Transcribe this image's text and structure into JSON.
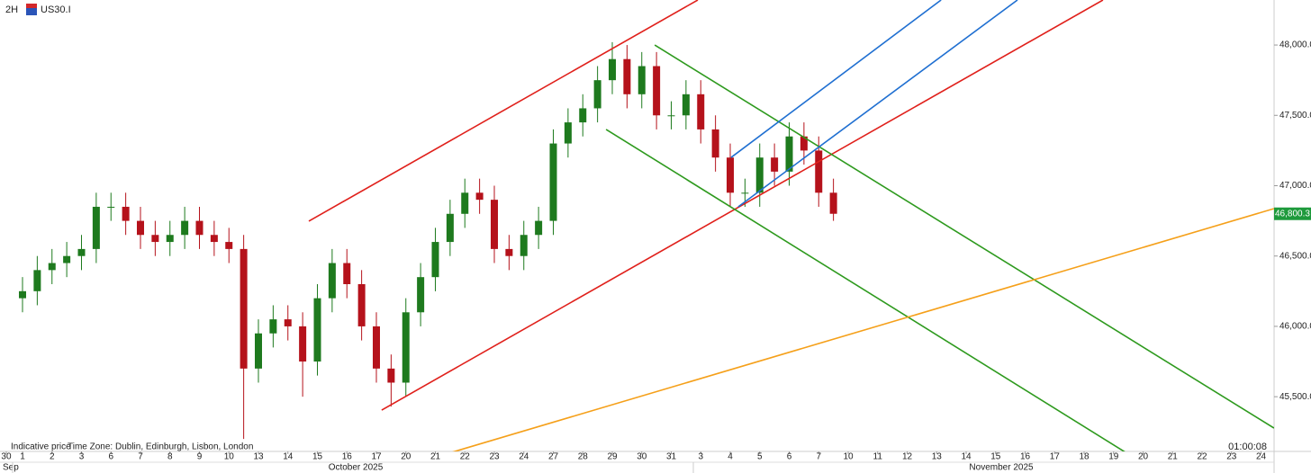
{
  "chart_data": {
    "type": "candlestick",
    "timeframe": "2H",
    "symbol": "US30.I",
    "footer_left": "Indicative price",
    "timezone": "Time Zone: Dublin, Edinburgh, Lisbon, London",
    "countdown": "01:00:08",
    "months": [
      "Sep",
      "October 2025",
      "November 2025"
    ],
    "ylim": [
      45111,
      48320
    ],
    "yticks": [
      {
        "value": 48000,
        "label": "48,000.0"
      },
      {
        "value": 47500,
        "label": "47,500.0"
      },
      {
        "value": 47000,
        "label": "47,000.0"
      },
      {
        "value": 46500,
        "label": "46,500.0"
      },
      {
        "value": 46000,
        "label": "46,000.0"
      },
      {
        "value": 45500,
        "label": "45,500.0"
      }
    ],
    "xlim": [
      -0.76,
      42.45
    ],
    "xticks": [
      {
        "value": -0.55,
        "label": "30"
      },
      {
        "value": 0,
        "label": "1"
      },
      {
        "value": 1,
        "label": "2"
      },
      {
        "value": 2,
        "label": "3"
      },
      {
        "value": 3,
        "label": "6"
      },
      {
        "value": 4,
        "label": "7"
      },
      {
        "value": 5,
        "label": "8"
      },
      {
        "value": 6,
        "label": "9"
      },
      {
        "value": 7,
        "label": "10"
      },
      {
        "value": 8,
        "label": "13"
      },
      {
        "value": 9,
        "label": "14"
      },
      {
        "value": 10,
        "label": "15"
      },
      {
        "value": 11,
        "label": "16"
      },
      {
        "value": 12,
        "label": "17"
      },
      {
        "value": 13,
        "label": "20"
      },
      {
        "value": 14,
        "label": "21"
      },
      {
        "value": 15,
        "label": "22"
      },
      {
        "value": 16,
        "label": "23"
      },
      {
        "value": 17,
        "label": "24"
      },
      {
        "value": 18,
        "label": "27"
      },
      {
        "value": 19,
        "label": "28"
      },
      {
        "value": 20,
        "label": "29"
      },
      {
        "value": 21,
        "label": "30"
      },
      {
        "value": 22,
        "label": "31"
      },
      {
        "value": 23,
        "label": "3"
      },
      {
        "value": 24,
        "label": "4"
      },
      {
        "value": 25,
        "label": "5"
      },
      {
        "value": 26,
        "label": "6"
      },
      {
        "value": 27,
        "label": "7"
      },
      {
        "value": 28,
        "label": "10"
      },
      {
        "value": 29,
        "label": "11"
      },
      {
        "value": 30,
        "label": "12"
      },
      {
        "value": 31,
        "label": "13"
      },
      {
        "value": 32,
        "label": "14"
      },
      {
        "value": 33,
        "label": "15"
      },
      {
        "value": 34,
        "label": "16"
      },
      {
        "value": 35,
        "label": "17"
      },
      {
        "value": 36,
        "label": "18"
      },
      {
        "value": 37,
        "label": "19"
      },
      {
        "value": 38,
        "label": "20"
      },
      {
        "value": 39,
        "label": "21"
      },
      {
        "value": 40,
        "label": "22"
      },
      {
        "value": 41,
        "label": "23"
      },
      {
        "value": 42,
        "label": "24"
      }
    ],
    "up_color": "#1e7a1e",
    "down_color": "#b5121b",
    "x": [
      0,
      0.5,
      1,
      1.5,
      2,
      2.5,
      3,
      3.5,
      4,
      4.5,
      5,
      5.5,
      6,
      6.5,
      7,
      7.5,
      8,
      8.5,
      9,
      9.5,
      10,
      10.5,
      11,
      11.5,
      12,
      12.5,
      13,
      13.5,
      14,
      14.5,
      15,
      15.5,
      16,
      16.5,
      17,
      17.5,
      18,
      18.5,
      19,
      19.5,
      20,
      20.5,
      21,
      21.5,
      22,
      22.5,
      23,
      23.5,
      24,
      24.5,
      25,
      25.5,
      26,
      26.5,
      27,
      27.5
    ],
    "open": [
      46200,
      46250,
      46400,
      46450,
      46500,
      46550,
      46850,
      46850,
      46750,
      46650,
      46600,
      46650,
      46750,
      46650,
      46600,
      46550,
      45700,
      45950,
      46050,
      46000,
      45750,
      46200,
      46450,
      46300,
      46000,
      45700,
      45600,
      46100,
      46350,
      46600,
      46800,
      46950,
      46900,
      46550,
      46500,
      46650,
      46750,
      47300,
      47450,
      47550,
      47750,
      47900,
      47650,
      47850,
      47500,
      47500,
      47650,
      47400,
      47200,
      46950,
      46950,
      47200,
      47100,
      47350,
      47250,
      46950
    ],
    "high": [
      46350,
      46500,
      46550,
      46600,
      46650,
      46950,
      46950,
      46950,
      46850,
      46750,
      46750,
      46850,
      46850,
      46750,
      46700,
      46650,
      46050,
      46150,
      46150,
      46100,
      46300,
      46550,
      46550,
      46400,
      46100,
      45800,
      46200,
      46450,
      46700,
      46900,
      47050,
      47050,
      47000,
      46650,
      46750,
      46850,
      47400,
      47550,
      47650,
      47850,
      48020,
      48000,
      47950,
      47950,
      47600,
      47750,
      47750,
      47500,
      47300,
      47050,
      47300,
      47300,
      47450,
      47450,
      47350,
      47050
    ],
    "low": [
      46100,
      46150,
      46300,
      46350,
      46400,
      46450,
      46750,
      46650,
      46550,
      46500,
      46500,
      46550,
      46550,
      46500,
      46450,
      45200,
      45600,
      45850,
      45900,
      45500,
      45650,
      46100,
      46200,
      45900,
      45600,
      45430,
      45500,
      46000,
      46250,
      46500,
      46700,
      46800,
      46450,
      46400,
      46400,
      46550,
      46650,
      47200,
      47350,
      47450,
      47650,
      47550,
      47550,
      47400,
      47400,
      47400,
      47300,
      47100,
      46850,
      46850,
      46850,
      47000,
      47000,
      47150,
      46850,
      46750
    ],
    "close": [
      46250,
      46400,
      46450,
      46500,
      46550,
      46850,
      46850,
      46750,
      46650,
      46600,
      46650,
      46750,
      46650,
      46600,
      46550,
      45700,
      45950,
      46050,
      46000,
      45750,
      46200,
      46450,
      46300,
      46000,
      45700,
      45600,
      46100,
      46350,
      46600,
      46800,
      46950,
      46900,
      46550,
      46500,
      46650,
      46750,
      47300,
      47450,
      47550,
      47750,
      47900,
      47650,
      47850,
      47500,
      47500,
      47650,
      47400,
      47200,
      46950,
      46950,
      47200,
      47100,
      47350,
      47250,
      46950,
      46800.3
    ],
    "last_price": {
      "value": 46800.3,
      "label": "46,800.3"
    },
    "last_price_color": "#1e9a3c",
    "drawings": [
      {
        "color": "#e0201b",
        "x": [
          9.71,
          22.9
        ],
        "y": [
          46748,
          48320
        ]
      },
      {
        "color": "#e0201b",
        "x": [
          12.18,
          36.64
        ],
        "y": [
          45405,
          48320
        ]
      },
      {
        "color": "#2e9a1e",
        "x": [
          21.44,
          42.44
        ],
        "y": [
          48000,
          45277
        ]
      },
      {
        "color": "#2e9a1e",
        "x": [
          19.79,
          37.4
        ],
        "y": [
          47400,
          45105
        ]
      },
      {
        "color": "#f5a01a",
        "x": [
          14.35,
          42.44
        ],
        "y": [
          45092,
          46837
        ]
      },
      {
        "color": "#1f6fd1",
        "x": [
          24.03,
          31.15
        ],
        "y": [
          47201,
          48320
        ]
      },
      {
        "color": "#1f6fd1",
        "x": [
          24.27,
          33.74
        ],
        "y": [
          46850,
          48320
        ]
      }
    ]
  }
}
